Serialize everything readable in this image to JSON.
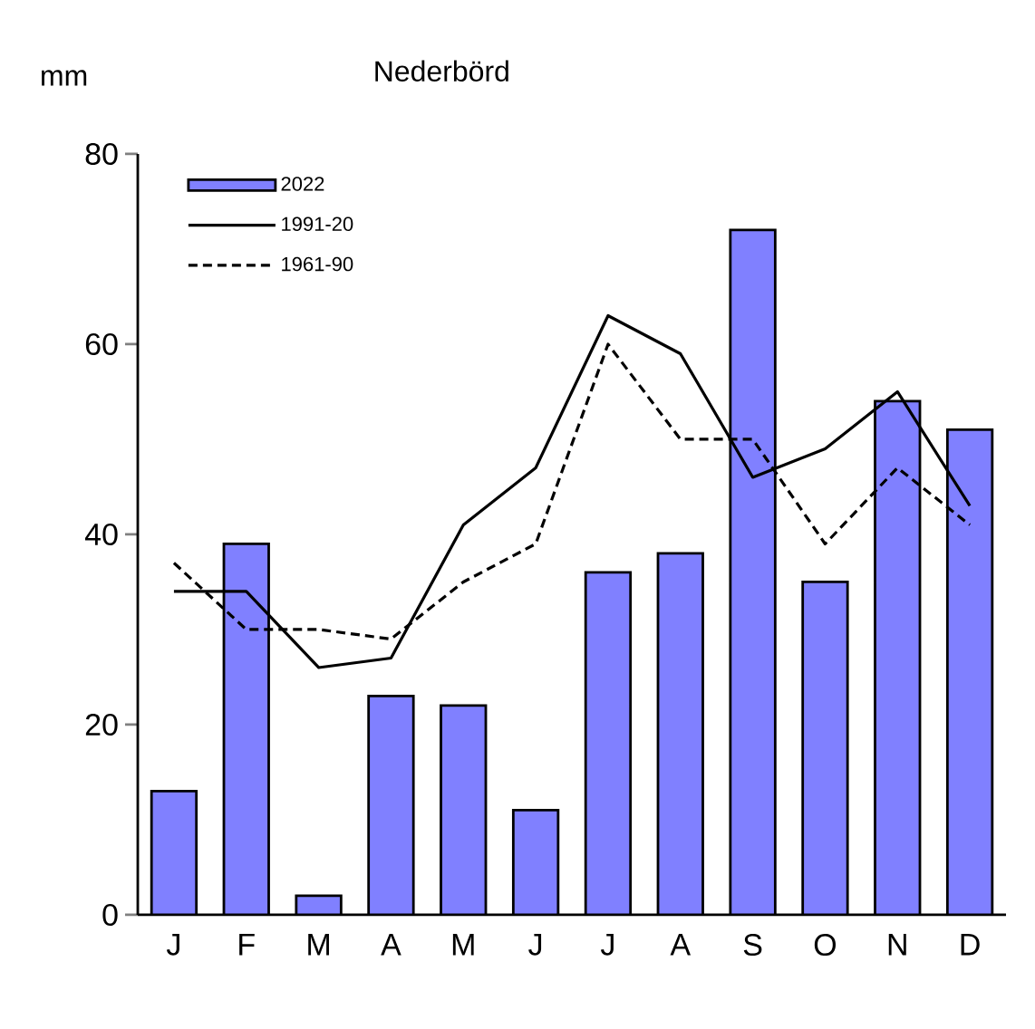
{
  "chart_data": {
    "type": "bar",
    "title": "Nederbörd",
    "ylabel": "mm",
    "categories": [
      "J",
      "F",
      "M",
      "A",
      "M",
      "J",
      "J",
      "A",
      "S",
      "O",
      "N",
      "D"
    ],
    "series": [
      {
        "name": "2022",
        "color": "#8080ff",
        "values": [
          13,
          39,
          2,
          23,
          22,
          11,
          36,
          38,
          72,
          35,
          54,
          51
        ]
      },
      {
        "name": "1991-20",
        "type": "line",
        "line_style": "solid",
        "color": "#000000",
        "values": [
          34,
          34,
          26,
          27,
          41,
          47,
          63,
          59,
          46,
          49,
          55,
          43
        ]
      },
      {
        "name": "1961-90",
        "type": "line",
        "line_style": "dashed",
        "color": "#000000",
        "values": [
          37,
          30,
          30,
          29,
          35,
          39,
          60,
          50,
          50,
          39,
          47,
          41
        ]
      }
    ],
    "ylim": [
      0,
      80
    ],
    "yticks": [
      0,
      20,
      40,
      60,
      80
    ],
    "legend": "top left"
  }
}
